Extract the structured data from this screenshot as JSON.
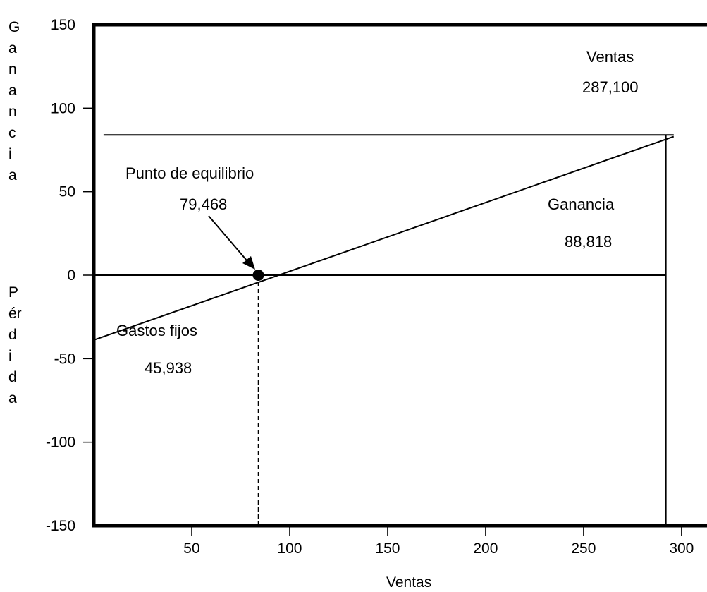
{
  "chart_data": {
    "type": "line",
    "title": "",
    "xlabel": "Ventas",
    "ylabel_gain": "Ganancia",
    "ylabel_loss": "Pérdida",
    "xlim": [
      0,
      313
    ],
    "ylim": [
      -150,
      150
    ],
    "x_ticks": [
      {
        "value": 50,
        "label": "50"
      },
      {
        "value": 100,
        "label": "100"
      },
      {
        "value": 150,
        "label": "150"
      },
      {
        "value": 200,
        "label": "200"
      },
      {
        "value": 250,
        "label": "250"
      },
      {
        "value": 300,
        "label": "300"
      }
    ],
    "y_ticks": [
      {
        "value": 150,
        "label": "150"
      },
      {
        "value": 100,
        "label": "100"
      },
      {
        "value": 50,
        "label": "50"
      },
      {
        "value": 0,
        "label": "0"
      },
      {
        "value": -50,
        "label": "-50"
      },
      {
        "value": -100,
        "label": "-100"
      },
      {
        "value": -150,
        "label": "-150"
      }
    ],
    "series": [
      {
        "x": [
          0,
          296
        ],
        "y": [
          -38,
          83
        ]
      }
    ],
    "reference_lines": {
      "zero_line": {
        "y": 0,
        "x": [
          0,
          292
        ]
      },
      "gain_line": {
        "y": 84,
        "x": [
          5,
          296
        ]
      },
      "sales_line": {
        "x": 292,
        "y": [
          -150,
          84
        ]
      },
      "breakeven_line": {
        "x": 84,
        "y": [
          -150,
          0
        ]
      }
    },
    "breakeven_point": {
      "x": 84,
      "y": 0
    },
    "annotations": [
      {
        "id": "ventas",
        "text": "Ventas",
        "value": "287,100"
      },
      {
        "id": "equilibrio",
        "text": "Punto de equilibrio",
        "value": "79,468"
      },
      {
        "id": "ganancia",
        "text": "Ganancia",
        "value": "88,818"
      },
      {
        "id": "gastos",
        "text": "Gastos fijos",
        "value": "45,938"
      }
    ],
    "grid": false,
    "legend": "none"
  }
}
